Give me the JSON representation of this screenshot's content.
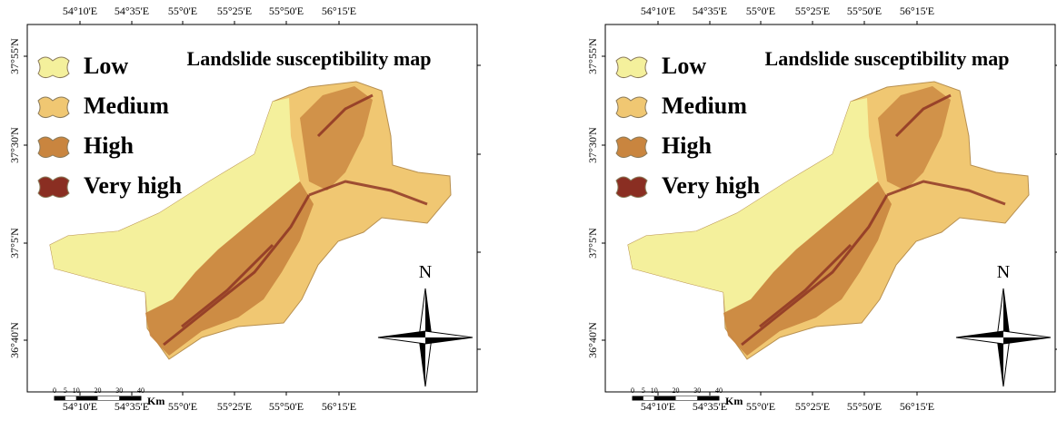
{
  "panels": [
    {
      "title": "Landslide susceptibility map",
      "legend": [
        "Low",
        "Medium",
        "High",
        "Very high"
      ],
      "lon_top": [
        "54°10'E",
        "54°35'E",
        "55°0'E",
        "55°25'E",
        "55°50'E",
        "56°15'E"
      ],
      "lon_bottom": [
        "54°10'E",
        "54°35'E",
        "55°0'E",
        "55°25'E",
        "55°50'E",
        "56°15'E"
      ],
      "lat": [
        "37°55'N",
        "37°30'N",
        "37°5'N",
        "36°40'N"
      ],
      "north": "N",
      "scale_ticks": [
        0,
        5,
        10,
        20,
        30,
        40
      ],
      "scale_unit": "Km"
    },
    {
      "title": "Landslide susceptibility map",
      "legend": [
        "Low",
        "Medium",
        "High",
        "Very high"
      ],
      "lon_top": [
        "54°10'E",
        "54°35'E",
        "55°0'E",
        "55°25'E",
        "55°50'E",
        "56°15'E"
      ],
      "lon_bottom": [
        "54°10'E",
        "54°35'E",
        "55°0'E",
        "55°25'E",
        "55°50'E",
        "56°15'E"
      ],
      "lat": [
        "37°55'N",
        "37°30'N",
        "37°5'N",
        "36°40'N"
      ],
      "north": "N",
      "scale_ticks": [
        0,
        5,
        10,
        20,
        30,
        40
      ],
      "scale_unit": "Km"
    }
  ]
}
